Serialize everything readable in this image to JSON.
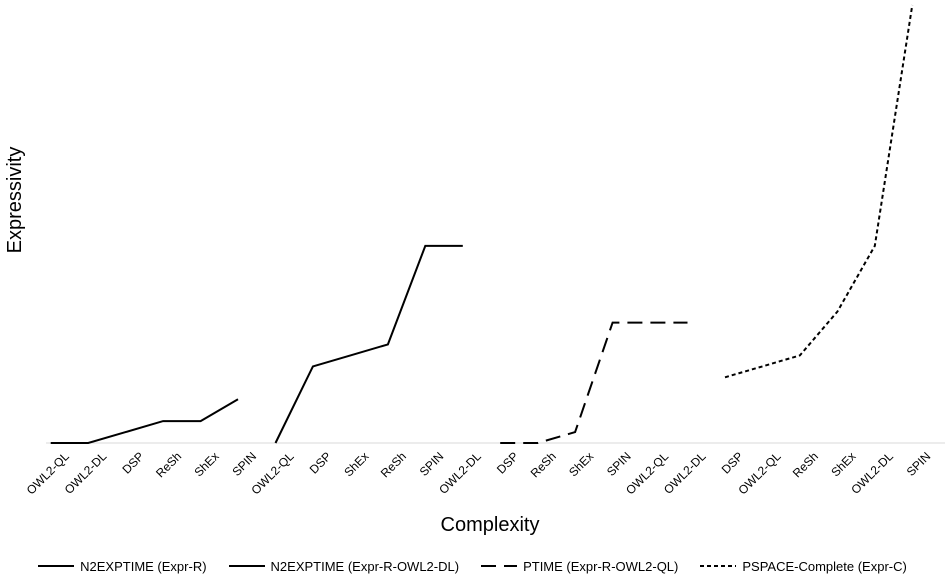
{
  "chart_data": {
    "type": "line",
    "xlabel": "Complexity",
    "ylabel": "Expressivity",
    "categories": [
      "OWL2-QL",
      "OWL2-DL",
      "DSP",
      "ReSh",
      "ShEx",
      "SPIN",
      "OWL2-QL",
      "DSP",
      "ShEx",
      "ReSh",
      "SPIN",
      "OWL2-DL",
      "DSP",
      "ReSh",
      "ShEx",
      "SPIN",
      "OWL2-QL",
      "OWL2-DL",
      "DSP",
      "OWL2-QL",
      "ReSh",
      "ShEx",
      "OWL2-DL",
      "SPIN"
    ],
    "ylim": [
      0,
      100
    ],
    "grid": false,
    "legend_position": "bottom",
    "series": [
      {
        "name": "N2EXPTIME (Expr-R)",
        "style": "solid",
        "x": [
          0,
          1,
          2,
          3,
          4,
          5
        ],
        "y": [
          0,
          0,
          2.5,
          5,
          5,
          10
        ]
      },
      {
        "name": "N2EXPTIME (Expr-R-OWL2-DL)",
        "style": "solid",
        "x": [
          6,
          7,
          8,
          9,
          10,
          11
        ],
        "y": [
          0,
          17.5,
          20,
          22.5,
          45,
          45
        ]
      },
      {
        "name": "PTIME (Expr-R-OWL2-QL)",
        "style": "dashed",
        "x": [
          12,
          13,
          14,
          15,
          16,
          17
        ],
        "y": [
          0,
          0,
          2.5,
          27.5,
          27.5,
          27.5
        ]
      },
      {
        "name": "PSPACE-Complete (Expr-C)",
        "style": "dotted",
        "x": [
          18,
          19,
          20,
          21,
          22,
          23
        ],
        "y": [
          15,
          17.5,
          20,
          30,
          45,
          100
        ]
      }
    ]
  },
  "colors": {
    "line": "#000000",
    "axis": "#d9d9d9"
  }
}
